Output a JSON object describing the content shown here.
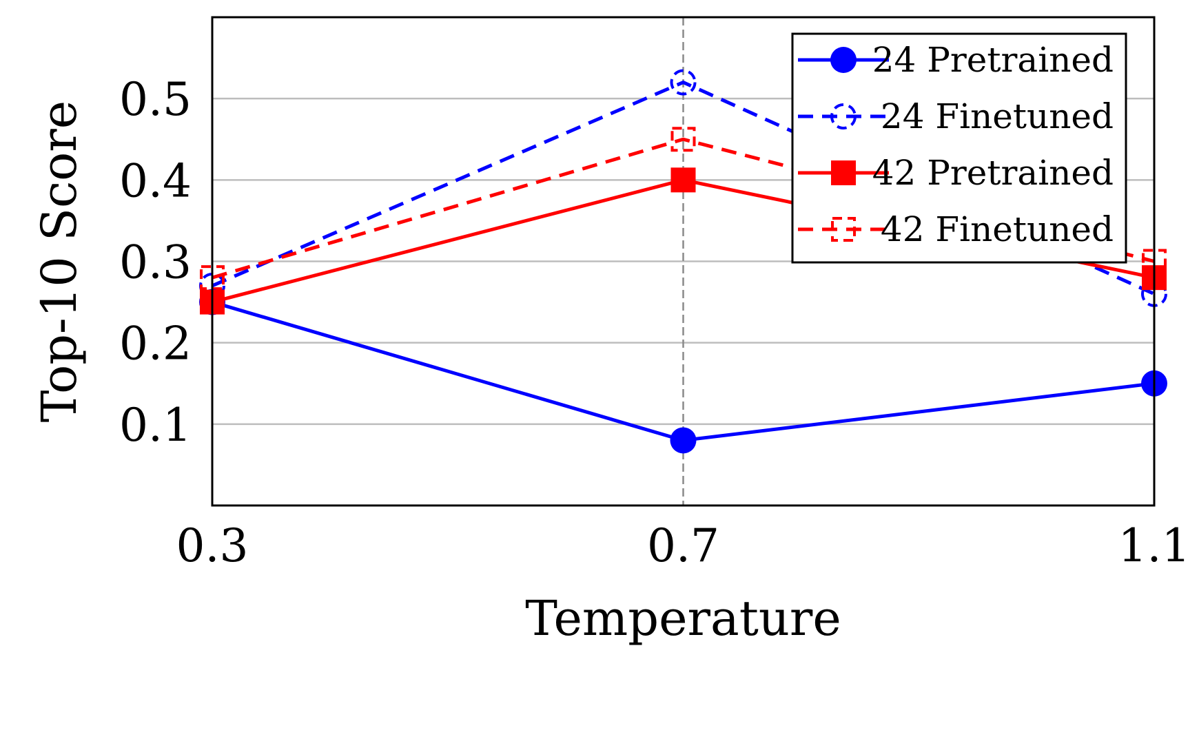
{
  "chart_data": {
    "type": "line",
    "title": "",
    "xlabel": "Temperature",
    "ylabel": "Top-10 Score",
    "x": [
      0.3,
      0.7,
      1.1
    ],
    "x_ticks": [
      "0.3",
      "0.7",
      "1.1"
    ],
    "y_ticks": [
      "0.1",
      "0.2",
      "0.3",
      "0.4",
      "0.5"
    ],
    "xlim": [
      0.3,
      1.1
    ],
    "ylim": [
      0.0,
      0.6
    ],
    "grid": true,
    "legend_position": "top-right",
    "series": [
      {
        "name": "24 Pretrained",
        "values": [
          0.25,
          0.08,
          0.15
        ],
        "color": "#0000ff",
        "dashed": false,
        "marker": "circle",
        "filled": true
      },
      {
        "name": "24 Finetuned",
        "values": [
          0.27,
          0.52,
          0.26
        ],
        "color": "#0000ff",
        "dashed": true,
        "marker": "circle",
        "filled": false
      },
      {
        "name": "42 Pretrained",
        "values": [
          0.25,
          0.4,
          0.28
        ],
        "color": "#ff0000",
        "dashed": false,
        "marker": "square",
        "filled": true
      },
      {
        "name": "42 Finetuned",
        "values": [
          0.28,
          0.45,
          0.3
        ],
        "color": "#ff0000",
        "dashed": true,
        "marker": "square",
        "filled": false
      }
    ]
  }
}
